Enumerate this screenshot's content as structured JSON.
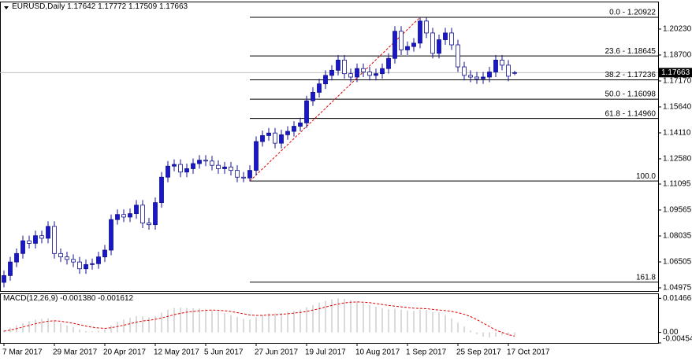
{
  "chart_data": {
    "type": "candlestick",
    "symbol": "EURUSD,Daily",
    "up_color": "#1818c8",
    "down_color": "#ffffff",
    "outline_color": "#10108a",
    "open": [
      1.053,
      1.057,
      1.065,
      1.07,
      1.0775,
      1.076,
      1.0805,
      1.079,
      1.086,
      1.07,
      1.068,
      1.0665,
      1.065,
      1.061,
      1.0635,
      1.064,
      1.068,
      1.072,
      1.09,
      1.093,
      1.0915,
      1.0935,
      1.0985,
      1.088,
      1.087,
      1.1,
      1.115,
      1.1215,
      1.1225,
      1.118,
      1.12,
      1.123,
      1.125,
      1.1245,
      1.122,
      1.12,
      1.121,
      1.119,
      1.115,
      1.1145,
      1.119,
      1.136,
      1.1395,
      1.141,
      1.135,
      1.14,
      1.142,
      1.145,
      1.147,
      1.16,
      1.165,
      1.17,
      1.175,
      1.178,
      1.184,
      1.176,
      1.174,
      1.179,
      1.177,
      1.175,
      1.176,
      1.179,
      1.185,
      1.201,
      1.19,
      1.192,
      1.194,
      1.207,
      1.2,
      1.188,
      1.196,
      1.2,
      1.193,
      1.18,
      1.175,
      1.174,
      1.173,
      1.174,
      1.177,
      1.184,
      1.181,
      1.17642
    ],
    "high": [
      1.06,
      1.068,
      1.073,
      1.0805,
      1.0805,
      1.0835,
      1.0835,
      1.089,
      1.089,
      1.073,
      1.071,
      1.0695,
      1.068,
      1.0665,
      1.067,
      1.071,
      1.075,
      1.093,
      1.096,
      1.096,
      1.0965,
      1.1015,
      1.1015,
      1.091,
      1.103,
      1.118,
      1.1245,
      1.1255,
      1.1255,
      1.123,
      1.126,
      1.128,
      1.128,
      1.1275,
      1.125,
      1.124,
      1.124,
      1.122,
      1.118,
      1.122,
      1.139,
      1.1425,
      1.144,
      1.144,
      1.143,
      1.145,
      1.148,
      1.15,
      1.163,
      1.168,
      1.173,
      1.178,
      1.181,
      1.187,
      1.187,
      1.179,
      1.182,
      1.182,
      1.18,
      1.179,
      1.182,
      1.188,
      1.204,
      1.204,
      1.195,
      1.197,
      1.20922,
      1.209,
      1.203,
      1.199,
      1.203,
      1.203,
      1.196,
      1.183,
      1.178,
      1.177,
      1.177,
      1.18,
      1.187,
      1.187,
      1.184,
      1.17772
    ],
    "low": [
      1.05,
      1.054,
      1.062,
      1.067,
      1.073,
      1.073,
      1.076,
      1.076,
      1.067,
      1.065,
      1.0635,
      1.062,
      1.058,
      1.058,
      1.0605,
      1.061,
      1.065,
      1.069,
      1.087,
      1.0885,
      1.0885,
      1.0905,
      1.085,
      1.084,
      1.084,
      1.097,
      1.112,
      1.1185,
      1.115,
      1.115,
      1.117,
      1.12,
      1.1215,
      1.119,
      1.117,
      1.117,
      1.116,
      1.112,
      1.112,
      1.1125,
      1.116,
      1.133,
      1.1365,
      1.132,
      1.132,
      1.137,
      1.139,
      1.142,
      1.144,
      1.157,
      1.162,
      1.167,
      1.172,
      1.175,
      1.173,
      1.171,
      1.171,
      1.174,
      1.172,
      1.172,
      1.173,
      1.176,
      1.182,
      1.187,
      1.187,
      1.189,
      1.191,
      1.197,
      1.185,
      1.185,
      1.193,
      1.19,
      1.177,
      1.172,
      1.171,
      1.17,
      1.17,
      1.171,
      1.174,
      1.178,
      1.1715,
      1.17509
    ],
    "close": [
      1.057,
      1.065,
      1.07,
      1.0775,
      1.076,
      1.0805,
      1.079,
      1.086,
      1.07,
      1.068,
      1.0665,
      1.065,
      1.061,
      1.0635,
      1.064,
      1.068,
      1.072,
      1.09,
      1.093,
      1.0915,
      1.0935,
      1.0985,
      1.088,
      1.087,
      1.1,
      1.115,
      1.1215,
      1.1225,
      1.118,
      1.12,
      1.123,
      1.125,
      1.1245,
      1.122,
      1.12,
      1.121,
      1.119,
      1.115,
      1.1145,
      1.119,
      1.136,
      1.1395,
      1.141,
      1.135,
      1.14,
      1.142,
      1.145,
      1.147,
      1.16,
      1.165,
      1.17,
      1.175,
      1.178,
      1.184,
      1.176,
      1.174,
      1.179,
      1.177,
      1.175,
      1.176,
      1.179,
      1.185,
      1.201,
      1.19,
      1.192,
      1.194,
      1.207,
      1.2,
      1.188,
      1.196,
      1.2,
      1.193,
      1.18,
      1.175,
      1.174,
      1.173,
      1.174,
      1.177,
      1.184,
      1.181,
      1.1745,
      1.17663
    ],
    "ylim": [
      1.0479,
      1.2185
    ],
    "yticks": [
      {
        "value": 1.2023,
        "label": "1.20230"
      },
      {
        "value": 1.187,
        "label": "1.18700"
      },
      {
        "value": 1.1717,
        "label": "1.17170"
      },
      {
        "value": 1.1564,
        "label": "1.15640"
      },
      {
        "value": 1.1411,
        "label": "1.14110"
      },
      {
        "value": 1.1258,
        "label": "1.12580"
      },
      1.11095,
      1.09565,
      1.08035,
      1.06505,
      1.04975
    ],
    "xticks": [
      {
        "value": 0,
        "label": "7 Mar 2017"
      },
      {
        "value": 8,
        "label": "29 Mar 2017"
      },
      {
        "value": 16,
        "label": "20 Apr 2017"
      },
      {
        "value": 24,
        "label": "12 May 2017"
      },
      {
        "value": 32,
        "label": "5 Jun 2017"
      },
      {
        "value": 40,
        "label": "27 Jun 2017"
      },
      {
        "value": 48,
        "label": "19 Jul 2017"
      },
      {
        "value": 56,
        "label": "10 Aug 2017"
      },
      {
        "value": 64,
        "label": "1 Sep 2017"
      },
      {
        "value": 72,
        "label": "25 Sep 2017"
      },
      {
        "value": 80,
        "label": "17 Oct 2017"
      }
    ],
    "fibo": {
      "color": "#000000",
      "trend_color": "#e00000",
      "levels": [
        {
          "value": 1.20922,
          "label": "0.0 - 1.20922"
        },
        {
          "value": 1.18645,
          "label": "23.6 - 1.18645"
        },
        {
          "value": 1.17236,
          "label": "38.2 - 1.17236"
        },
        {
          "value": 1.16098,
          "label": "50.0 - 1.16098"
        },
        {
          "value": 1.1496,
          "label": "61.8 - 1.14960"
        },
        {
          "value": 1.11274,
          "label": "100.0"
        },
        {
          "value": 1.05312,
          "label": "161.8"
        }
      ]
    },
    "macd": {
      "name": "MACD(12,26,9)",
      "value_labels": [
        "-0.001380",
        "-0.001612"
      ],
      "hist_color": "#b4b4b4",
      "signal_color": "#e00000",
      "histogram": [
        0.001,
        0.002,
        0.003,
        0.004,
        0.0048,
        0.0055,
        0.0058,
        0.006,
        0.005,
        0.004,
        0.003,
        0.0022,
        0.0012,
        0.0006,
        0.0004,
        0.0006,
        0.0012,
        0.003,
        0.0045,
        0.0055,
        0.0062,
        0.007,
        0.0068,
        0.0065,
        0.007,
        0.0085,
        0.0098,
        0.0105,
        0.0106,
        0.0105,
        0.0104,
        0.0103,
        0.01,
        0.0096,
        0.009,
        0.0083,
        0.0075,
        0.0066,
        0.0058,
        0.0055,
        0.0065,
        0.0075,
        0.0082,
        0.0082,
        0.0084,
        0.0088,
        0.0092,
        0.0098,
        0.0108,
        0.0118,
        0.0128,
        0.0136,
        0.0142,
        0.0146,
        0.0144,
        0.0138,
        0.0132,
        0.0126,
        0.0118,
        0.011,
        0.0104,
        0.01,
        0.0102,
        0.0098,
        0.0094,
        0.0092,
        0.0098,
        0.0096,
        0.0088,
        0.0086,
        0.0075,
        0.006,
        0.0042,
        0.0025,
        0.0008,
        -0.0008,
        -0.0018,
        -0.0022,
        -0.0018,
        -0.0012,
        -0.0014,
        -0.00138
      ],
      "signal": [
        0.0005,
        0.001,
        0.0016,
        0.0023,
        0.003,
        0.0037,
        0.0043,
        0.0048,
        0.005,
        0.0048,
        0.0044,
        0.0039,
        0.0033,
        0.0027,
        0.0022,
        0.0019,
        0.0017,
        0.002,
        0.0025,
        0.0031,
        0.0037,
        0.0044,
        0.0049,
        0.0052,
        0.0056,
        0.0062,
        0.0069,
        0.0076,
        0.0082,
        0.0087,
        0.009,
        0.0093,
        0.0095,
        0.0096,
        0.0095,
        0.0093,
        0.009,
        0.0085,
        0.008,
        0.0075,
        0.0073,
        0.0073,
        0.0075,
        0.0076,
        0.0078,
        0.008,
        0.0083,
        0.0086,
        0.009,
        0.0096,
        0.0102,
        0.0109,
        0.0116,
        0.0122,
        0.0127,
        0.013,
        0.0131,
        0.013,
        0.0128,
        0.0124,
        0.012,
        0.0116,
        0.0113,
        0.011,
        0.0107,
        0.0104,
        0.0103,
        0.0102,
        0.0099,
        0.0096,
        0.0094,
        0.009,
        0.0085,
        0.0078,
        0.0068,
        0.0055,
        0.004,
        0.0025,
        0.001,
        0.0,
        -0.001,
        -0.001612
      ],
      "y2lim": [
        -0.004545,
        0.0168
      ],
      "y2ticks": [
        0.01466,
        {
          "value": 0,
          "label": "0.00"
        },
        -0.004545
      ]
    }
  }
}
